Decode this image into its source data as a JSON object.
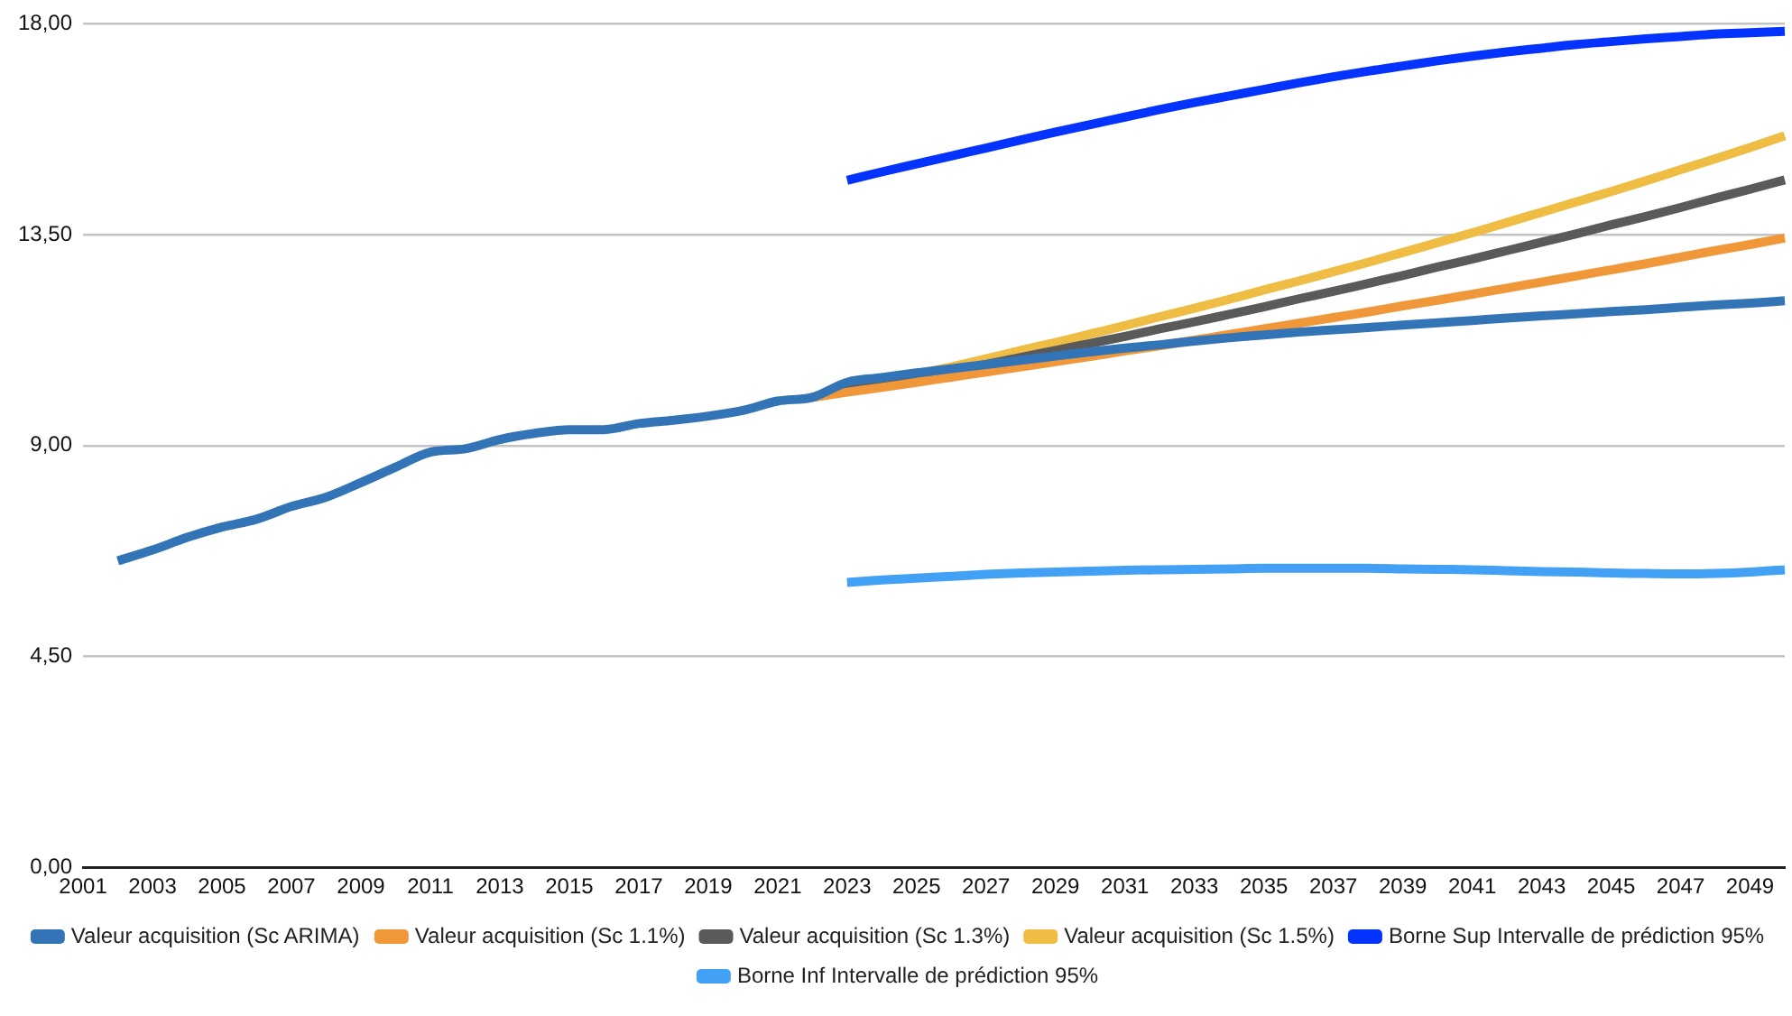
{
  "chart_data": {
    "type": "line",
    "categories": [
      "2001",
      null,
      "2003",
      null,
      "2005",
      null,
      "2007",
      null,
      "2009",
      null,
      "2011",
      null,
      "2013",
      null,
      "2015",
      null,
      "2017",
      null,
      "2019",
      null,
      "2021",
      null,
      "2023",
      null,
      "2025",
      null,
      "2027",
      null,
      "2029",
      null,
      "2031",
      null,
      "2033",
      null,
      "2035",
      null,
      "2037",
      null,
      "2039",
      null,
      "2041",
      null,
      "2043",
      null,
      "2045",
      null,
      "2047",
      null,
      "2049",
      null
    ],
    "ylim": [
      0,
      18
    ],
    "yticks": [
      {
        "value": 0,
        "label": "0,00"
      },
      {
        "value": 4.5,
        "label": "4,50"
      },
      {
        "value": 9,
        "label": "9,00"
      },
      {
        "value": 13.5,
        "label": "13,50"
      },
      {
        "value": 18,
        "label": "18,00"
      }
    ],
    "grid": "y",
    "legend": "bottom",
    "marker": "none",
    "line_style": "solid",
    "series": [
      {
        "name": "Valeur acquisition (Sc ARIMA)",
        "color": "#3274b5",
        "values": [
          null,
          6.54,
          6.77,
          7.04,
          7.26,
          7.43,
          7.7,
          7.9,
          8.21,
          8.54,
          8.86,
          8.93,
          9.13,
          9.26,
          9.34,
          9.34,
          9.47,
          9.54,
          9.63,
          9.75,
          9.95,
          10.03,
          10.35,
          10.45,
          10.55,
          10.64,
          10.73,
          10.82,
          10.91,
          11.0,
          11.08,
          11.15,
          11.23,
          11.3,
          11.36,
          11.42,
          11.47,
          11.52,
          11.57,
          11.62,
          11.67,
          11.72,
          11.77,
          11.81,
          11.86,
          11.9,
          11.95,
          12.0,
          12.04,
          12.09
        ]
      },
      {
        "name": "Valeur acquisition (Sc 1.1%)",
        "color": "#f0973a",
        "values": [
          null,
          null,
          null,
          null,
          null,
          null,
          null,
          null,
          null,
          null,
          null,
          null,
          null,
          null,
          null,
          null,
          null,
          null,
          null,
          null,
          null,
          10.03,
          10.14,
          10.24,
          10.35,
          10.46,
          10.57,
          10.68,
          10.79,
          10.9,
          11.02,
          11.13,
          11.25,
          11.37,
          11.49,
          11.61,
          11.73,
          11.85,
          11.98,
          12.1,
          12.23,
          12.36,
          12.49,
          12.62,
          12.75,
          12.88,
          13.02,
          13.16,
          13.29,
          13.43
        ]
      },
      {
        "name": "Valeur acquisition (Sc 1.3%)",
        "color": "#5a5a5a",
        "values": [
          null,
          null,
          null,
          null,
          null,
          null,
          null,
          null,
          null,
          null,
          null,
          null,
          null,
          null,
          null,
          null,
          null,
          null,
          null,
          null,
          null,
          10.03,
          10.17,
          10.31,
          10.45,
          10.59,
          10.73,
          10.88,
          11.03,
          11.18,
          11.33,
          11.49,
          11.64,
          11.8,
          11.96,
          12.13,
          12.29,
          12.46,
          12.63,
          12.81,
          12.98,
          13.16,
          13.34,
          13.52,
          13.71,
          13.89,
          14.08,
          14.28,
          14.47,
          14.67
        ]
      },
      {
        "name": "Valeur acquisition (Sc 1.5%)",
        "color": "#efbc44",
        "values": [
          null,
          null,
          null,
          null,
          null,
          null,
          null,
          null,
          null,
          null,
          null,
          null,
          null,
          null,
          null,
          null,
          null,
          null,
          null,
          null,
          null,
          10.03,
          10.19,
          10.35,
          10.52,
          10.68,
          10.85,
          11.03,
          11.2,
          11.38,
          11.56,
          11.75,
          11.93,
          12.12,
          12.32,
          12.51,
          12.71,
          12.91,
          13.12,
          13.33,
          13.54,
          13.76,
          13.98,
          14.2,
          14.42,
          14.65,
          14.89,
          15.12,
          15.36,
          15.61
        ]
      },
      {
        "name": "Borne Sup Intervalle de prédiction 95%",
        "color": "#0433ff",
        "values": [
          null,
          null,
          null,
          null,
          null,
          null,
          null,
          null,
          null,
          null,
          null,
          null,
          null,
          null,
          null,
          null,
          null,
          null,
          null,
          null,
          null,
          null,
          14.66,
          14.84,
          15.01,
          15.18,
          15.35,
          15.52,
          15.69,
          15.85,
          16.01,
          16.17,
          16.32,
          16.46,
          16.6,
          16.74,
          16.87,
          16.99,
          17.1,
          17.21,
          17.31,
          17.4,
          17.48,
          17.56,
          17.62,
          17.68,
          17.73,
          17.78,
          17.81,
          17.84
        ]
      },
      {
        "name": "Borne Inf Intervalle de prédiction 95%",
        "color": "#42a0f5",
        "values": [
          null,
          null,
          null,
          null,
          null,
          null,
          null,
          null,
          null,
          null,
          null,
          null,
          null,
          null,
          null,
          null,
          null,
          null,
          null,
          null,
          null,
          null,
          6.08,
          6.13,
          6.17,
          6.21,
          6.25,
          6.28,
          6.3,
          6.32,
          6.34,
          6.35,
          6.36,
          6.37,
          6.38,
          6.38,
          6.38,
          6.38,
          6.37,
          6.36,
          6.35,
          6.33,
          6.31,
          6.3,
          6.28,
          6.27,
          6.26,
          6.27,
          6.3,
          6.35
        ]
      }
    ]
  }
}
